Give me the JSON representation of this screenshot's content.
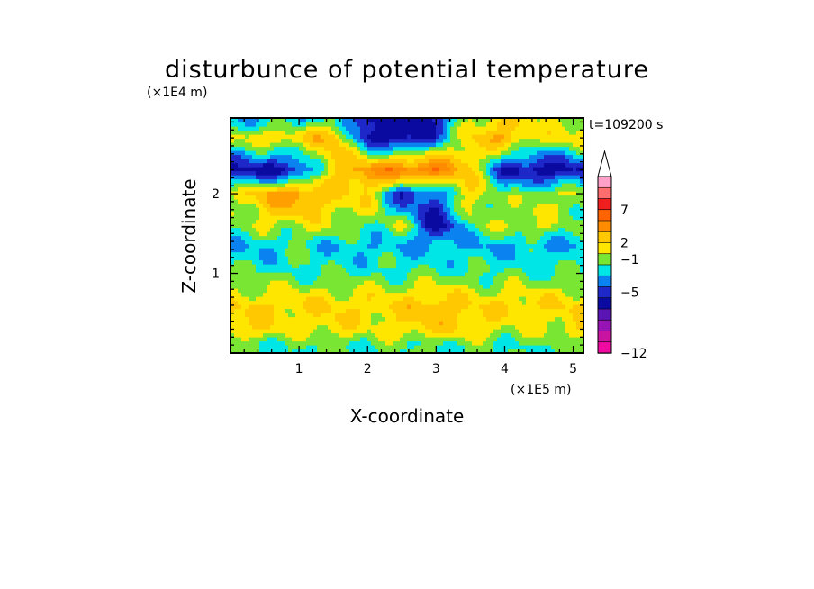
{
  "chart_data": {
    "type": "heatmap",
    "title": "disturbunce of potential temperature",
    "time_label": "t=109200 s",
    "xlabel": "X-coordinate",
    "ylabel": "Z-coordinate",
    "x_unit": "(×1E5 m)",
    "y_unit": "(×1E4 m)",
    "xlim": [
      0,
      5.15
    ],
    "ylim": [
      0,
      2.95
    ],
    "x_ticks": [
      1,
      2,
      3,
      4,
      5
    ],
    "y_ticks": [
      1,
      2
    ],
    "colorbar": {
      "extend": "max",
      "labels": [
        "7",
        "2",
        "-1",
        "-5",
        "-12"
      ],
      "colors": [
        "#f0dc00",
        "#ffa0c8",
        "#ff6e6e",
        "#f01e1e",
        "#ff6400",
        "#ff8c00",
        "#ffc800",
        "#ffe600",
        "#78e632",
        "#00e6e6",
        "#0a82f0",
        "#1e28c8",
        "#0a0aa0",
        "#5a14b4",
        "#9614b4",
        "#c814a0",
        "#f00aa0"
      ]
    },
    "field_rows": [
      {
        "z": 2.95,
        "x": [
          0,
          0.5,
          1.0,
          1.5,
          2.0,
          2.5,
          3.0,
          3.5,
          4.0,
          4.5,
          5.15
        ],
        "v": [
          -1,
          -1,
          -1,
          0,
          -4,
          -4,
          -3,
          1,
          2,
          1,
          1
        ]
      },
      {
        "z": 2.7,
        "x": [
          0,
          0.5,
          1.0,
          1.5,
          2.0,
          2.5,
          3.0,
          3.5,
          4.0,
          4.5,
          5.15
        ],
        "v": [
          1,
          2,
          2,
          3,
          -3,
          -4,
          -2,
          2,
          3,
          1,
          2
        ]
      },
      {
        "z": 2.3,
        "x": [
          0,
          0.5,
          1.0,
          1.5,
          2.0,
          2.5,
          3.0,
          3.5,
          4.0,
          4.5,
          5.15
        ],
        "v": [
          -3,
          -4,
          -3,
          2,
          4,
          5,
          5,
          2,
          -3,
          -4,
          -3
        ]
      },
      {
        "z": 2.0,
        "x": [
          0,
          0.5,
          1.0,
          1.5,
          2.0,
          2.5,
          3.0,
          3.5,
          4.0,
          4.5,
          5.15
        ],
        "v": [
          1,
          3,
          4,
          2,
          2,
          -3,
          -2,
          2,
          0,
          1,
          1
        ]
      },
      {
        "z": 1.6,
        "x": [
          0,
          0.5,
          1.0,
          1.5,
          2.0,
          2.5,
          3.0,
          3.5,
          4.0,
          4.5,
          5.15
        ],
        "v": [
          0,
          1,
          1,
          1,
          0,
          1,
          -4,
          0,
          1,
          1,
          0
        ]
      },
      {
        "z": 1.35,
        "x": [
          0,
          0.5,
          1.0,
          1.5,
          2.0,
          2.5,
          3.0,
          3.5,
          4.0,
          4.5,
          5.15
        ],
        "v": [
          -1,
          -1,
          0,
          -1,
          -1,
          -1,
          -1,
          -1,
          -1,
          -1,
          -1
        ]
      },
      {
        "z": 1.0,
        "x": [
          0,
          0.5,
          1.0,
          1.5,
          2.0,
          2.5,
          3.0,
          3.5,
          4.0,
          4.5,
          5.15
        ],
        "v": [
          0,
          0,
          0,
          0,
          0,
          0,
          0,
          0,
          0,
          0,
          0
        ]
      },
      {
        "z": 0.6,
        "x": [
          0,
          0.5,
          1.0,
          1.5,
          2.0,
          2.5,
          3.0,
          3.5,
          4.0,
          4.5,
          5.15
        ],
        "v": [
          2,
          2,
          2,
          2,
          2,
          2,
          3,
          2,
          2,
          2,
          2
        ]
      },
      {
        "z": 0.3,
        "x": [
          0,
          0.5,
          1.0,
          1.5,
          2.0,
          2.5,
          3.0,
          3.5,
          4.0,
          4.5,
          5.15
        ],
        "v": [
          2,
          2,
          1,
          2,
          1,
          2,
          2,
          2,
          1,
          1,
          2
        ]
      },
      {
        "z": 0.1,
        "x": [
          0,
          0.5,
          1.0,
          1.5,
          2.0,
          2.5,
          3.0,
          3.5,
          4.0,
          4.5,
          5.15
        ],
        "v": [
          0,
          0,
          0,
          0,
          0,
          0,
          0,
          0,
          0,
          0,
          0
        ]
      }
    ]
  }
}
